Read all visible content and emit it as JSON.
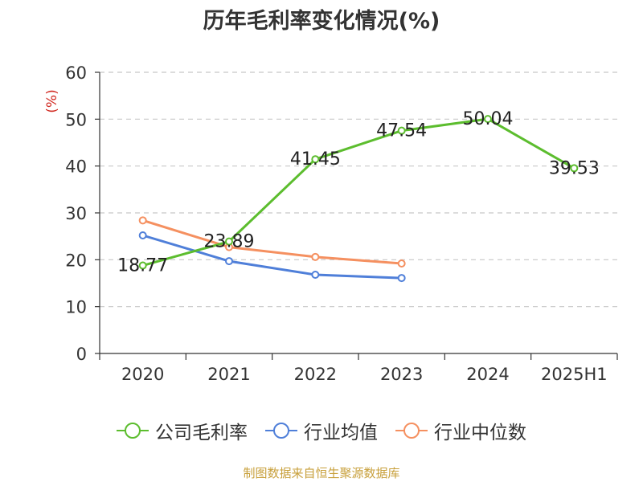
{
  "chart_data": {
    "type": "line",
    "title": "历年毛利率变化情况(%)",
    "ylabel": "(%)",
    "xlabel": "",
    "categories": [
      "2020",
      "2021",
      "2022",
      "2023",
      "2024",
      "2025H1"
    ],
    "yticks": [
      "0",
      "10",
      "20",
      "30",
      "40",
      "50",
      "60"
    ],
    "ylim": [
      0,
      60
    ],
    "grid": true,
    "legend_position": "bottom",
    "series": [
      {
        "name": "公司毛利率",
        "color": "#5cbd2e",
        "values": [
          18.77,
          23.89,
          41.45,
          47.54,
          50.04,
          39.53
        ],
        "labels": [
          "18.77",
          "23.89",
          "41.45",
          "47.54",
          "50.04",
          "39.53"
        ]
      },
      {
        "name": "行业均值",
        "color": "#4f7fd9",
        "values": [
          25.2,
          19.7,
          16.8,
          16.1,
          null,
          null
        ]
      },
      {
        "name": "行业中位数",
        "color": "#f59060",
        "values": [
          28.4,
          22.7,
          20.6,
          19.2,
          null,
          null
        ]
      }
    ]
  },
  "footer": {
    "source": "制图数据来自恒生聚源数据库"
  }
}
